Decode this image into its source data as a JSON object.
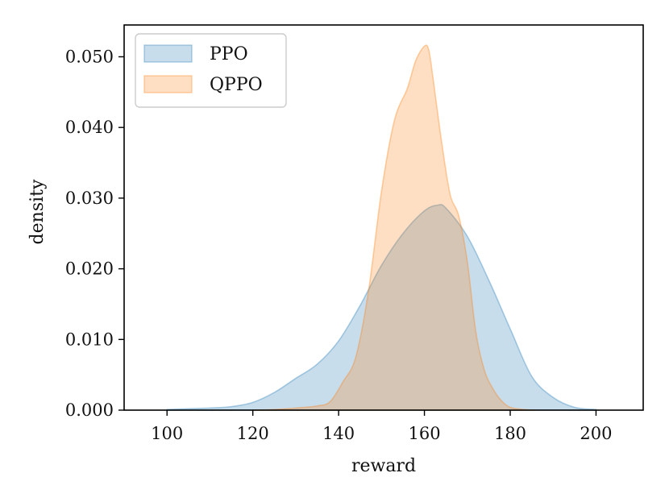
{
  "chart_data": {
    "type": "area",
    "xlabel": "reward",
    "ylabel": "density",
    "xlim": [
      90,
      211
    ],
    "ylim": [
      0,
      0.0545
    ],
    "xticks": [
      100,
      120,
      140,
      160,
      180,
      200
    ],
    "xtick_labels": [
      "100",
      "120",
      "140",
      "160",
      "180",
      "200"
    ],
    "yticks": [
      0,
      0.01,
      0.02,
      0.03,
      0.04,
      0.05
    ],
    "ytick_labels": [
      "0.000",
      "0.010",
      "0.020",
      "0.030",
      "0.040",
      "0.050"
    ],
    "grid": false,
    "legend_position": "top-left",
    "series": [
      {
        "name": "PPO",
        "color": "#1f77b4",
        "x": [
          100,
          105,
          110,
          115,
          120,
          125,
          130,
          135,
          140,
          145,
          150,
          155,
          160,
          163,
          165,
          170,
          175,
          180,
          185,
          190,
          195,
          200
        ],
        "y": [
          0.0001,
          0.0002,
          0.0003,
          0.0005,
          0.0011,
          0.0025,
          0.0045,
          0.0065,
          0.0098,
          0.0148,
          0.0205,
          0.025,
          0.0282,
          0.029,
          0.0286,
          0.0246,
          0.0184,
          0.0115,
          0.0048,
          0.0018,
          0.0004,
          0.0001
        ]
      },
      {
        "name": "QPPO",
        "color": "#ff7f0e",
        "x": [
          120,
          125,
          130,
          135,
          138,
          141,
          144,
          147,
          150,
          153,
          156,
          158,
          160,
          161,
          162,
          164,
          166,
          168,
          170,
          172,
          174,
          176,
          178,
          180,
          183,
          186
        ],
        "y": [
          0.0,
          0.0001,
          0.0003,
          0.0006,
          0.0012,
          0.004,
          0.0075,
          0.017,
          0.031,
          0.041,
          0.0455,
          0.0495,
          0.0515,
          0.051,
          0.047,
          0.038,
          0.0305,
          0.0275,
          0.021,
          0.011,
          0.0056,
          0.003,
          0.0013,
          0.0004,
          0.0001,
          0.0
        ]
      }
    ]
  }
}
